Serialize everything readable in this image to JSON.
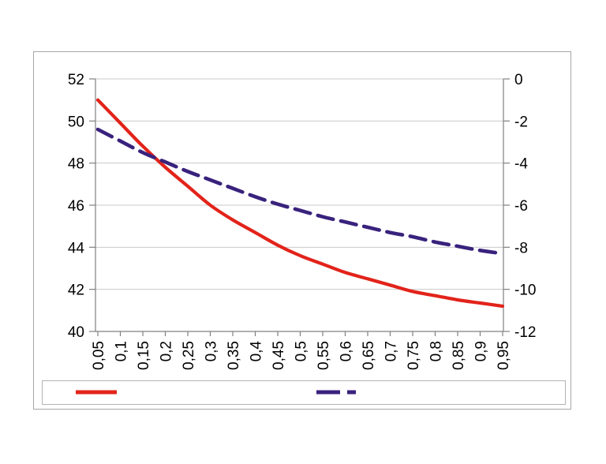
{
  "chart_data": {
    "type": "line",
    "title": "",
    "xlabel": "",
    "ylabel_left": "",
    "ylabel_right": "",
    "grid": true,
    "legend_position": "bottom",
    "legend_labels_visible": false,
    "x": [
      0.05,
      0.1,
      0.15,
      0.2,
      0.25,
      0.3,
      0.35,
      0.4,
      0.45,
      0.5,
      0.55,
      0.6,
      0.65,
      0.7,
      0.75,
      0.8,
      0.85,
      0.9,
      0.95
    ],
    "x_tick_labels": [
      "0,05",
      "0,1",
      "0,15",
      "0,2",
      "0,25",
      "0,3",
      "0,35",
      "0,4",
      "0,45",
      "0,5",
      "0,55",
      "0,6",
      "0,65",
      "0,7",
      "0,75",
      "0,8",
      "0,85",
      "0,9",
      "0,95"
    ],
    "left_axis": {
      "min": 40,
      "max": 52,
      "tick_labels": [
        "52",
        "50",
        "48",
        "46",
        "44",
        "42",
        "40"
      ],
      "tick_values": [
        52,
        50,
        48,
        46,
        44,
        42,
        40
      ]
    },
    "right_axis": {
      "min": -12,
      "max": 0,
      "tick_labels": [
        "0",
        "-2",
        "-4",
        "-6",
        "-8",
        "-10",
        "-12"
      ],
      "tick_values": [
        0,
        -2,
        -4,
        -6,
        -8,
        -10,
        -12
      ]
    },
    "series": [
      {
        "name": "solid-red-series",
        "axis": "left",
        "style": "solid",
        "color": "#e2231a",
        "stroke_width": 4.2,
        "values": [
          51.0,
          49.9,
          48.8,
          47.8,
          46.9,
          46.0,
          45.3,
          44.7,
          44.1,
          43.6,
          43.2,
          42.8,
          42.5,
          42.2,
          41.9,
          41.7,
          41.5,
          41.35,
          41.2
        ]
      },
      {
        "name": "dashed-indigo-series",
        "axis": "right",
        "style": "dashed",
        "color": "#39227d",
        "stroke_width": 4.6,
        "dash_pattern": "20 10",
        "values": [
          -2.4,
          -2.95,
          -3.5,
          -3.95,
          -4.4,
          -4.8,
          -5.2,
          -5.6,
          -5.95,
          -6.25,
          -6.55,
          -6.8,
          -7.05,
          -7.3,
          -7.5,
          -7.75,
          -7.95,
          -8.15,
          -8.3
        ]
      }
    ]
  },
  "legend": {
    "entries": [
      {
        "swatch": "solid-red-line",
        "label": ""
      },
      {
        "swatch": "dashed-indigo-line",
        "label": ""
      }
    ]
  },
  "colors": {
    "series_red": "#e2231a",
    "series_indigo": "#39227d",
    "gridline": "#c9c9c9",
    "axis_line": "#808080",
    "chart_border": "#a6a6a6",
    "legend_border": "#b3b3b3",
    "background": "#ffffff",
    "text": "#000000"
  }
}
